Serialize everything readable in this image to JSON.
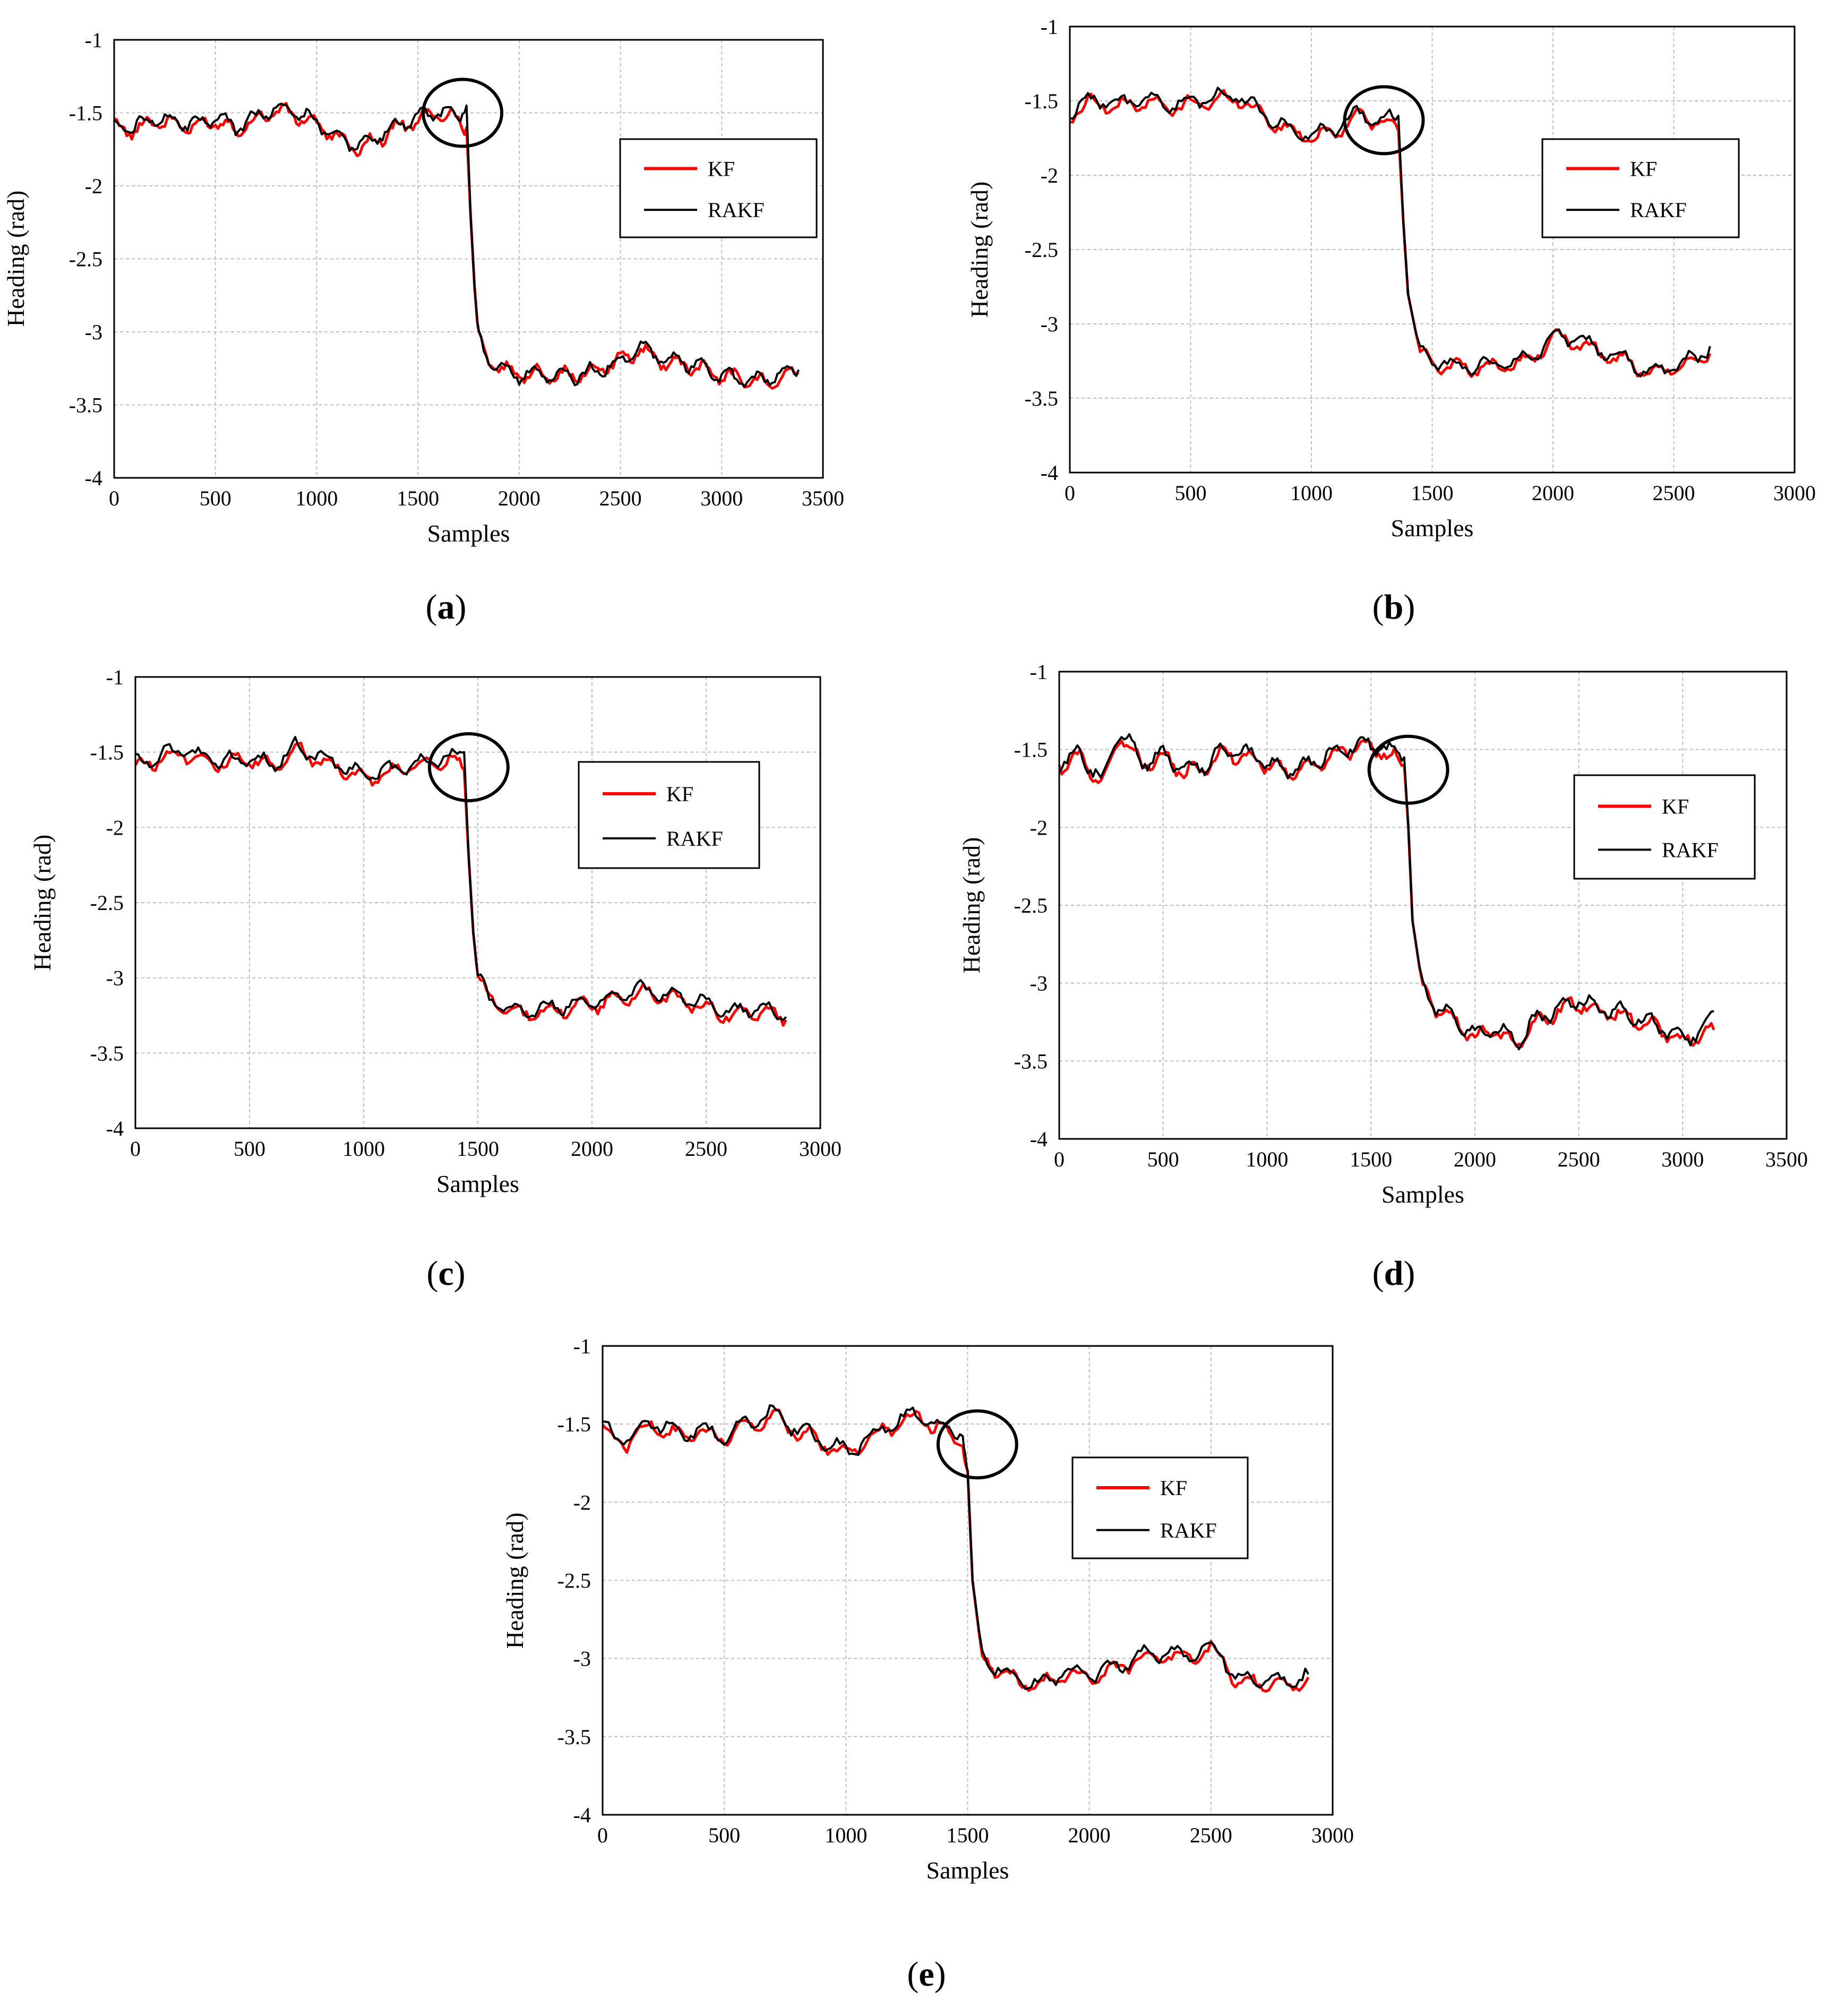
{
  "chart_data": [
    {
      "id": "a",
      "type": "line",
      "caption": "a",
      "xlabel": "Samples",
      "ylabel": "Heading (rad)",
      "xlim": [
        0,
        3500
      ],
      "ylim": [
        -4,
        -1
      ],
      "xticks": [
        "0",
        "500",
        "1000",
        "1500",
        "2000",
        "2500",
        "3000",
        "3500"
      ],
      "yticks": [
        "-1",
        "-1.5",
        "-2",
        "-2.5",
        "-3",
        "-3.5",
        "-4"
      ],
      "legend": [
        "KF",
        "RAKF"
      ],
      "series_colors": [
        "#ff0000",
        "#000000"
      ],
      "highlight": {
        "x": 1720,
        "y": -1.5
      },
      "series": [
        {
          "name": "KF",
          "x": [
            0,
            100,
            200,
            300,
            400,
            500,
            600,
            700,
            800,
            900,
            1000,
            1100,
            1200,
            1300,
            1400,
            1500,
            1600,
            1700,
            1740,
            1760,
            1780,
            1800,
            1850,
            1900,
            2000,
            2100,
            2200,
            2300,
            2400,
            2500,
            2600,
            2700,
            2800,
            2900,
            3000,
            3100,
            3200,
            3300,
            3380
          ],
          "y": [
            -1.6,
            -1.62,
            -1.55,
            -1.58,
            -1.6,
            -1.55,
            -1.62,
            -1.55,
            -1.48,
            -1.52,
            -1.58,
            -1.67,
            -1.75,
            -1.68,
            -1.6,
            -1.55,
            -1.5,
            -1.55,
            -1.6,
            -2.2,
            -2.7,
            -3.05,
            -3.2,
            -3.25,
            -3.3,
            -3.28,
            -3.3,
            -3.3,
            -3.25,
            -3.2,
            -3.12,
            -3.2,
            -3.22,
            -3.25,
            -3.3,
            -3.32,
            -3.35,
            -3.3,
            -3.28
          ]
        },
        {
          "name": "RAKF",
          "x": [
            0,
            100,
            200,
            300,
            400,
            500,
            600,
            700,
            800,
            900,
            1000,
            1100,
            1200,
            1300,
            1400,
            1500,
            1600,
            1700,
            1740,
            1760,
            1780,
            1800,
            1850,
            1900,
            2000,
            2100,
            2200,
            2300,
            2400,
            2500,
            2600,
            2700,
            2800,
            2900,
            3000,
            3100,
            3200,
            3300,
            3380
          ],
          "y": [
            -1.58,
            -1.6,
            -1.53,
            -1.56,
            -1.58,
            -1.54,
            -1.6,
            -1.53,
            -1.47,
            -1.5,
            -1.56,
            -1.65,
            -1.73,
            -1.66,
            -1.58,
            -1.53,
            -1.48,
            -1.52,
            -1.45,
            -2.2,
            -2.7,
            -3.05,
            -3.2,
            -3.25,
            -3.3,
            -3.28,
            -3.3,
            -3.3,
            -3.25,
            -3.2,
            -3.1,
            -3.18,
            -3.2,
            -3.24,
            -3.3,
            -3.32,
            -3.33,
            -3.28,
            -3.26
          ]
        }
      ]
    },
    {
      "id": "b",
      "type": "line",
      "caption": "b",
      "xlabel": "Samples",
      "ylabel": "Heading (rad)",
      "xlim": [
        0,
        3000
      ],
      "ylim": [
        -4,
        -1
      ],
      "xticks": [
        "0",
        "500",
        "1000",
        "1500",
        "2000",
        "2500",
        "3000"
      ],
      "yticks": [
        "-1",
        "-1.5",
        "-2",
        "-2.5",
        "-3",
        "-3.5",
        "-4"
      ],
      "legend": [
        "KF",
        "RAKF"
      ],
      "series_colors": [
        "#ff0000",
        "#000000"
      ],
      "highlight": {
        "x": 1300,
        "y": -1.63
      },
      "series": [
        {
          "name": "KF",
          "x": [
            0,
            100,
            200,
            300,
            400,
            500,
            600,
            700,
            800,
            900,
            1000,
            1100,
            1200,
            1300,
            1360,
            1380,
            1400,
            1450,
            1500,
            1600,
            1700,
            1800,
            1900,
            2000,
            2100,
            2200,
            2300,
            2400,
            2500,
            2600,
            2650
          ],
          "y": [
            -1.6,
            -1.5,
            -1.55,
            -1.5,
            -1.55,
            -1.52,
            -1.5,
            -1.48,
            -1.6,
            -1.7,
            -1.75,
            -1.7,
            -1.6,
            -1.65,
            -1.7,
            -2.3,
            -2.8,
            -3.2,
            -3.25,
            -3.3,
            -3.3,
            -3.28,
            -3.25,
            -3.1,
            -3.12,
            -3.2,
            -3.25,
            -3.35,
            -3.3,
            -3.25,
            -3.2
          ]
        },
        {
          "name": "RAKF",
          "x": [
            0,
            100,
            200,
            300,
            400,
            500,
            600,
            700,
            800,
            900,
            1000,
            1100,
            1200,
            1300,
            1360,
            1380,
            1400,
            1450,
            1500,
            1600,
            1700,
            1800,
            1900,
            2000,
            2100,
            2200,
            2300,
            2400,
            2500,
            2600,
            2650
          ],
          "y": [
            -1.58,
            -1.48,
            -1.53,
            -1.48,
            -1.53,
            -1.5,
            -1.48,
            -1.46,
            -1.58,
            -1.68,
            -1.73,
            -1.68,
            -1.58,
            -1.63,
            -1.6,
            -2.3,
            -2.8,
            -3.2,
            -3.24,
            -3.28,
            -3.28,
            -3.26,
            -3.23,
            -3.08,
            -3.1,
            -3.18,
            -3.23,
            -3.33,
            -3.28,
            -3.22,
            -3.15
          ]
        }
      ]
    },
    {
      "id": "c",
      "type": "line",
      "caption": "c",
      "xlabel": "Samples",
      "ylabel": "Heading (rad)",
      "xlim": [
        0,
        3000
      ],
      "ylim": [
        -4,
        -1
      ],
      "xticks": [
        "0",
        "500",
        "1000",
        "1500",
        "2000",
        "2500",
        "3000"
      ],
      "yticks": [
        "-1",
        "-1.5",
        "-2",
        "-2.5",
        "-3",
        "-3.5",
        "-4"
      ],
      "legend": [
        "KF",
        "RAKF"
      ],
      "series_colors": [
        "#ff0000",
        "#000000"
      ],
      "highlight": {
        "x": 1460,
        "y": -1.6
      },
      "series": [
        {
          "name": "KF",
          "x": [
            0,
            100,
            200,
            300,
            400,
            500,
            600,
            700,
            800,
            900,
            1000,
            1100,
            1200,
            1300,
            1400,
            1440,
            1460,
            1480,
            1500,
            1550,
            1600,
            1700,
            1800,
            1900,
            2000,
            2100,
            2200,
            2300,
            2400,
            2500,
            2600,
            2700,
            2800,
            2850
          ],
          "y": [
            -1.6,
            -1.55,
            -1.5,
            -1.55,
            -1.58,
            -1.55,
            -1.6,
            -1.48,
            -1.55,
            -1.6,
            -1.68,
            -1.65,
            -1.6,
            -1.58,
            -1.55,
            -1.62,
            -2.2,
            -2.7,
            -3.0,
            -3.15,
            -3.2,
            -3.25,
            -3.22,
            -3.2,
            -3.18,
            -3.15,
            -3.1,
            -3.12,
            -3.15,
            -3.2,
            -3.25,
            -3.22,
            -3.25,
            -3.28
          ]
        },
        {
          "name": "RAKF",
          "x": [
            0,
            100,
            200,
            300,
            400,
            500,
            600,
            700,
            800,
            900,
            1000,
            1100,
            1200,
            1300,
            1400,
            1440,
            1460,
            1480,
            1500,
            1550,
            1600,
            1700,
            1800,
            1900,
            2000,
            2100,
            2200,
            2300,
            2400,
            2500,
            2600,
            2700,
            2800,
            2850
          ],
          "y": [
            -1.58,
            -1.53,
            -1.48,
            -1.53,
            -1.56,
            -1.53,
            -1.58,
            -1.46,
            -1.53,
            -1.58,
            -1.66,
            -1.63,
            -1.58,
            -1.56,
            -1.53,
            -1.5,
            -2.2,
            -2.7,
            -3.0,
            -3.14,
            -3.19,
            -3.24,
            -3.2,
            -3.18,
            -3.16,
            -3.13,
            -3.08,
            -3.1,
            -3.13,
            -3.18,
            -3.23,
            -3.2,
            -3.23,
            -3.26
          ]
        }
      ]
    },
    {
      "id": "d",
      "type": "line",
      "caption": "d",
      "xlabel": "Samples",
      "ylabel": "Heading (rad)",
      "xlim": [
        0,
        3500
      ],
      "ylim": [
        -4,
        -1
      ],
      "xticks": [
        "0",
        "500",
        "1000",
        "1500",
        "2000",
        "2500",
        "3000",
        "3500"
      ],
      "yticks": [
        "-1",
        "-1.5",
        "-2",
        "-2.5",
        "-3",
        "-3.5",
        "-4"
      ],
      "legend": [
        "KF",
        "RAKF"
      ],
      "series_colors": [
        "#ff0000",
        "#000000"
      ],
      "highlight": {
        "x": 1680,
        "y": -1.63
      },
      "series": [
        {
          "name": "KF",
          "x": [
            0,
            100,
            200,
            300,
            400,
            500,
            600,
            700,
            800,
            900,
            1000,
            1100,
            1200,
            1300,
            1400,
            1500,
            1600,
            1660,
            1680,
            1700,
            1750,
            1800,
            1900,
            2000,
            2100,
            2200,
            2300,
            2400,
            2500,
            2600,
            2700,
            2800,
            2900,
            3000,
            3100,
            3150
          ],
          "y": [
            -1.6,
            -1.55,
            -1.7,
            -1.4,
            -1.6,
            -1.55,
            -1.65,
            -1.62,
            -1.52,
            -1.55,
            -1.6,
            -1.65,
            -1.62,
            -1.55,
            -1.5,
            -1.48,
            -1.55,
            -1.6,
            -2.0,
            -2.6,
            -3.05,
            -3.15,
            -3.25,
            -3.35,
            -3.3,
            -3.4,
            -3.25,
            -3.18,
            -3.12,
            -3.18,
            -3.2,
            -3.25,
            -3.3,
            -3.38,
            -3.32,
            -3.3
          ]
        },
        {
          "name": "RAKF",
          "x": [
            0,
            100,
            200,
            300,
            400,
            500,
            600,
            700,
            800,
            900,
            1000,
            1100,
            1200,
            1300,
            1400,
            1500,
            1600,
            1660,
            1680,
            1700,
            1750,
            1800,
            1900,
            2000,
            2100,
            2200,
            2300,
            2400,
            2500,
            2600,
            2700,
            2800,
            2900,
            3000,
            3100,
            3150
          ],
          "y": [
            -1.58,
            -1.53,
            -1.68,
            -1.38,
            -1.58,
            -1.53,
            -1.63,
            -1.6,
            -1.5,
            -1.53,
            -1.58,
            -1.63,
            -1.6,
            -1.53,
            -1.48,
            -1.46,
            -1.52,
            -1.55,
            -2.0,
            -2.6,
            -3.04,
            -3.14,
            -3.24,
            -3.33,
            -3.28,
            -3.38,
            -3.23,
            -3.16,
            -3.1,
            -3.16,
            -3.18,
            -3.23,
            -3.28,
            -3.36,
            -3.3,
            -3.18
          ]
        }
      ]
    },
    {
      "id": "e",
      "type": "line",
      "caption": "e",
      "xlabel": "Samples",
      "ylabel": "Heading (rad)",
      "xlim": [
        0,
        3000
      ],
      "ylim": [
        -4,
        -1
      ],
      "xticks": [
        "0",
        "500",
        "1000",
        "1500",
        "2000",
        "2500",
        "3000"
      ],
      "yticks": [
        "-1",
        "-1.5",
        "-2",
        "-2.5",
        "-3",
        "-3.5",
        "-4"
      ],
      "legend": [
        "KF",
        "RAKF"
      ],
      "series_colors": [
        "#ff0000",
        "#000000"
      ],
      "highlight": {
        "x": 1540,
        "y": -1.63
      },
      "series": [
        {
          "name": "KF",
          "x": [
            0,
            100,
            200,
            300,
            400,
            500,
            600,
            700,
            800,
            900,
            1000,
            1100,
            1200,
            1300,
            1400,
            1480,
            1500,
            1520,
            1560,
            1600,
            1700,
            1800,
            1900,
            2000,
            2100,
            2200,
            2300,
            2400,
            2500,
            2550,
            2600,
            2700,
            2800,
            2900
          ],
          "y": [
            -1.55,
            -1.62,
            -1.5,
            -1.58,
            -1.55,
            -1.6,
            -1.5,
            -1.45,
            -1.55,
            -1.62,
            -1.7,
            -1.6,
            -1.5,
            -1.45,
            -1.55,
            -1.62,
            -1.8,
            -2.5,
            -3.0,
            -3.05,
            -3.15,
            -3.18,
            -3.1,
            -3.12,
            -3.08,
            -3.0,
            -2.98,
            -3.0,
            -2.95,
            -3.0,
            -3.15,
            -3.15,
            -3.18,
            -3.12
          ]
        },
        {
          "name": "RAKF",
          "x": [
            0,
            100,
            200,
            300,
            400,
            500,
            600,
            700,
            800,
            900,
            1000,
            1100,
            1200,
            1300,
            1400,
            1480,
            1500,
            1520,
            1560,
            1600,
            1700,
            1800,
            1900,
            2000,
            2100,
            2200,
            2300,
            2400,
            2500,
            2550,
            2600,
            2700,
            2800,
            2900
          ],
          "y": [
            -1.53,
            -1.6,
            -1.48,
            -1.56,
            -1.53,
            -1.58,
            -1.48,
            -1.43,
            -1.53,
            -1.6,
            -1.68,
            -1.58,
            -1.48,
            -1.43,
            -1.53,
            -1.55,
            -1.8,
            -2.5,
            -2.98,
            -3.04,
            -3.13,
            -3.16,
            -3.08,
            -3.1,
            -3.06,
            -2.98,
            -2.96,
            -2.98,
            -2.93,
            -2.98,
            -3.13,
            -3.13,
            -3.16,
            -3.1
          ]
        }
      ]
    }
  ]
}
